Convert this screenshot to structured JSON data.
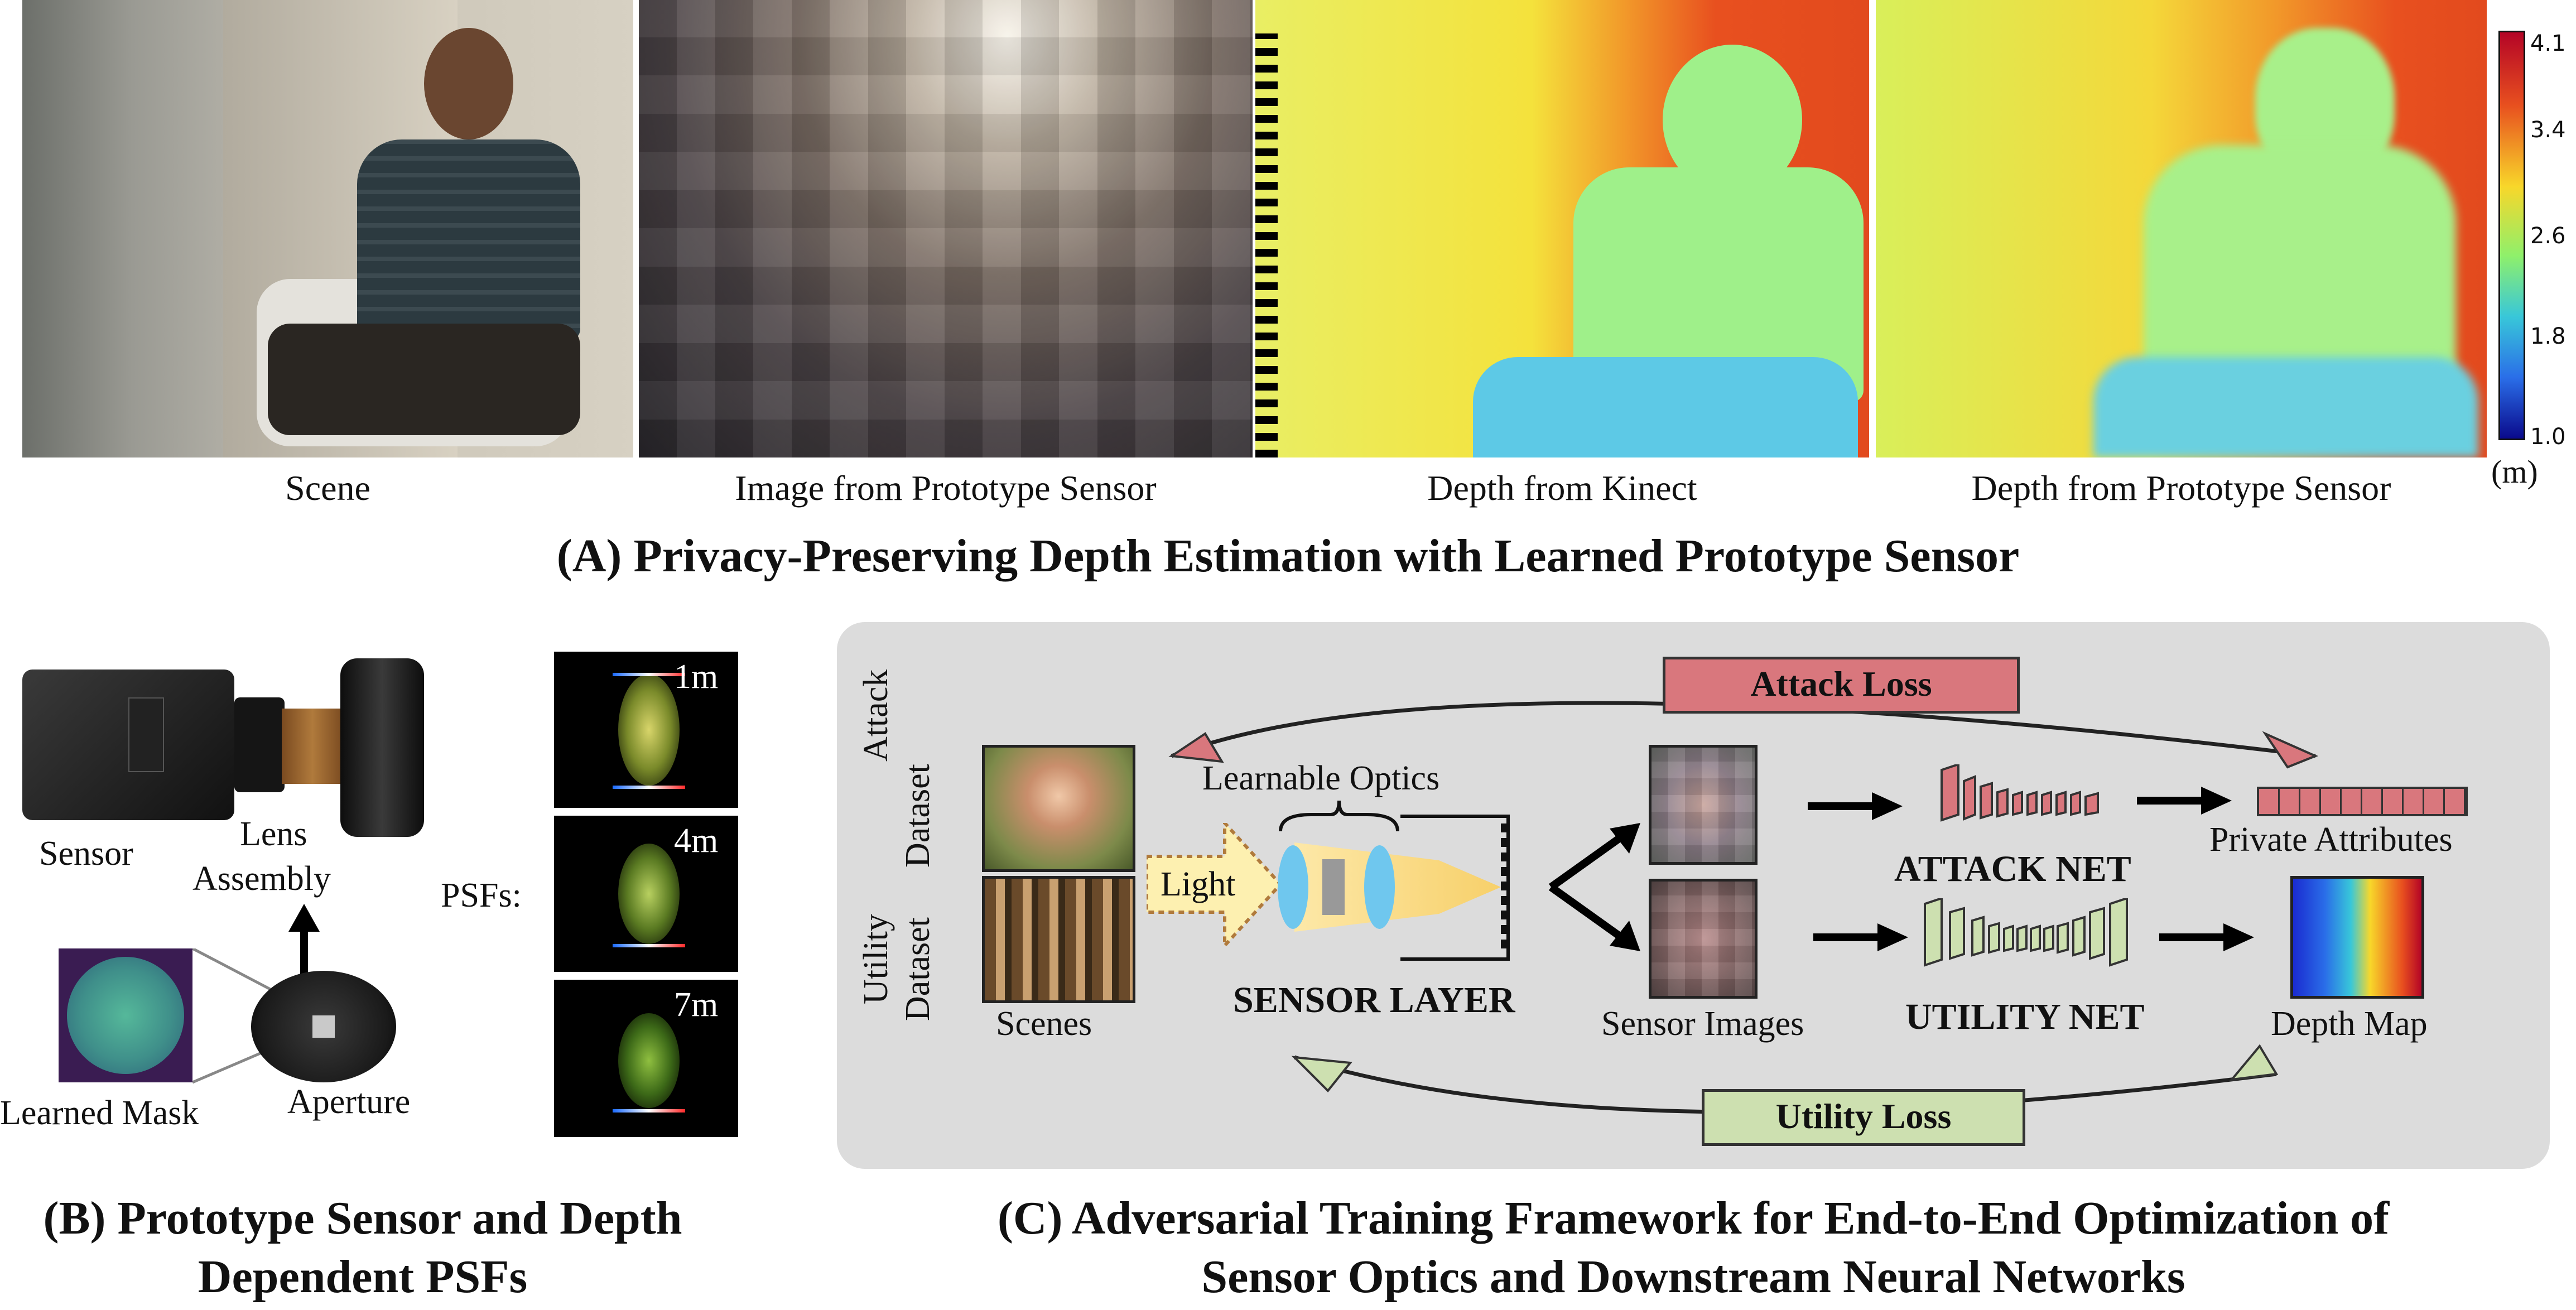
{
  "panelA": {
    "captions": [
      "Scene",
      "Image from Prototype Sensor",
      "Depth from Kinect",
      "Depth from Prototype Sensor"
    ],
    "colorbar": {
      "ticks": [
        "4.1",
        "3.4",
        "2.6",
        "1.8",
        "1.0"
      ],
      "unit": "(m)",
      "colors": [
        "#b40426",
        "#e8501f",
        "#f8d72a",
        "#8ff06b",
        "#38c7d9",
        "#2a6ee8",
        "#0a0a8c"
      ]
    },
    "title": "(A) Privacy-Preserving Depth Estimation with Learned Prototype Sensor"
  },
  "panelB": {
    "labels": {
      "sensor": "Sensor",
      "lens_line1": "Lens",
      "lens_line2": "Assembly",
      "learned_mask": "Learned Mask",
      "aperture": "Aperture",
      "psfs": "PSFs:"
    },
    "psf_distances": [
      "1m",
      "4m",
      "7m"
    ],
    "title_line1": "(B) Prototype Sensor and Depth",
    "title_line2": "Dependent PSFs"
  },
  "panelC": {
    "attack_loss": "Attack Loss",
    "utility_loss": "Utility Loss",
    "attack_dataset_line1": "Attack",
    "attack_dataset_line2": "Dataset",
    "utility_dataset_line1": "Utility",
    "utility_dataset_line2": "Dataset",
    "scenes": "Scenes",
    "light": "Light",
    "learnable_optics": "Learnable Optics",
    "sensor_layer": "SENSOR LAYER",
    "sensor_images": "Sensor Images",
    "attack_net": "ATTACK NET",
    "utility_net": "UTILITY NET",
    "private_attributes": "Private Attributes",
    "depth_map": "Depth Map",
    "colors": {
      "panel_bg": "#dcdcdc",
      "attack": "#d9777d",
      "utility": "#cde0b0"
    },
    "title_line1": "(C) Adversarial Training Framework for End-to-End Optimization of",
    "title_line2": "Sensor Optics and Downstream Neural Networks"
  }
}
